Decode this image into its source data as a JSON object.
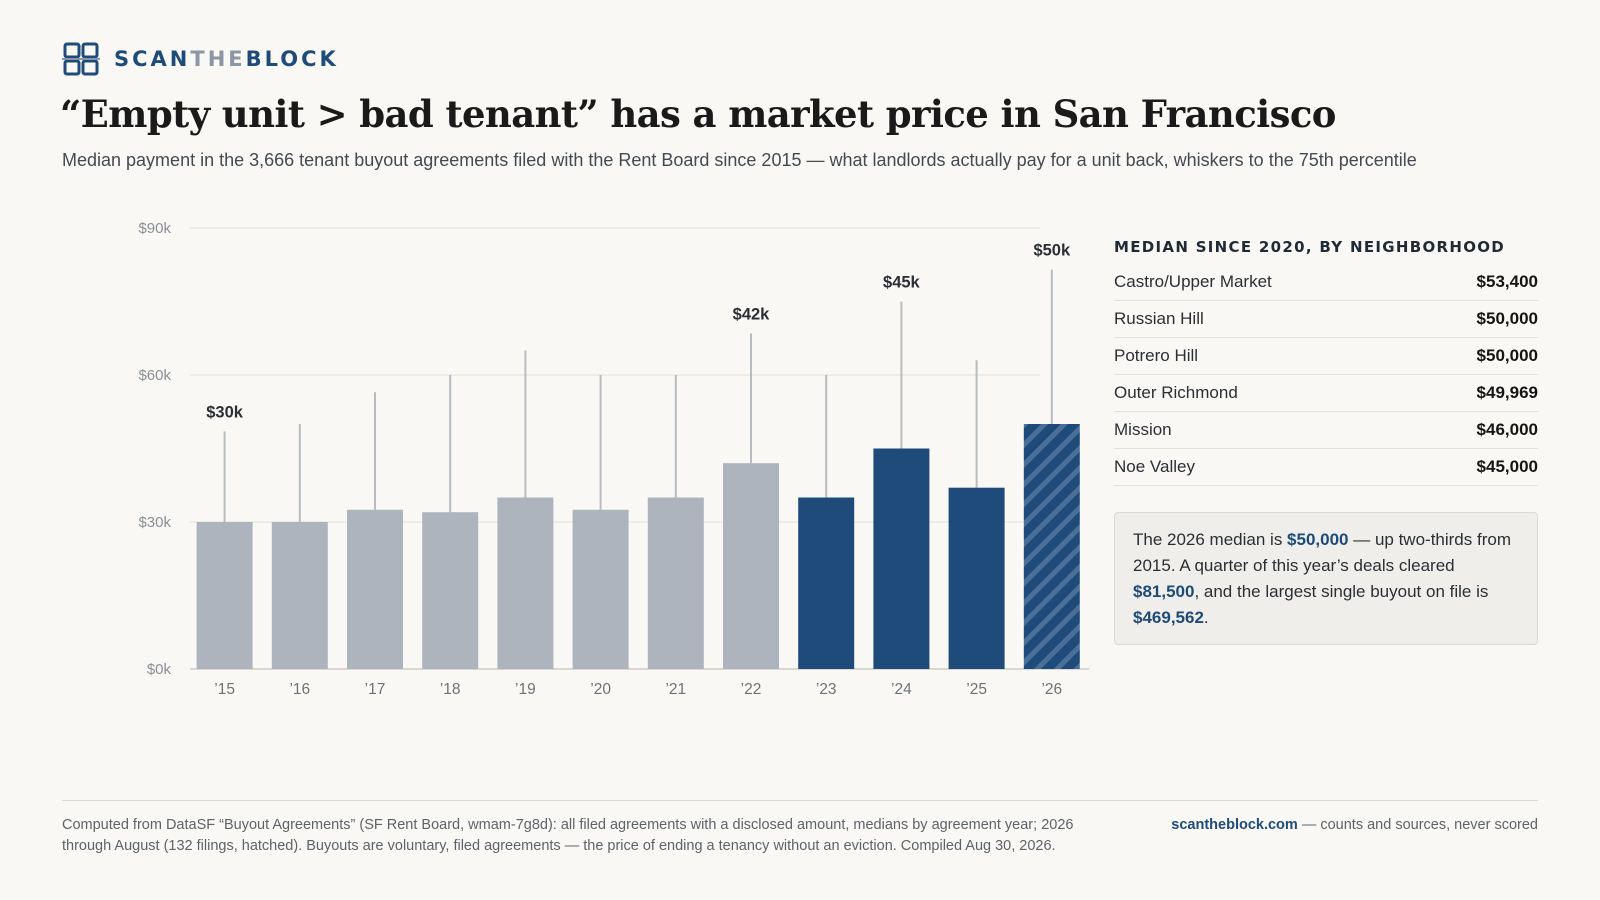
{
  "brand": {
    "part1": "SCAN",
    "part2": "THE",
    "part3": "BLOCK",
    "accent_color": "#1e4b79",
    "muted_color": "#8a96a4",
    "icon": "grid-logo-icon"
  },
  "title": "“Empty unit > bad tenant” has a market price in San Francisco",
  "subtitle": "Median payment in the 3,666 tenant buyout agreements filed with the Rent Board since 2015 — what landlords actually pay for a unit back, whiskers to the 75th percentile",
  "chart_data": {
    "type": "bar",
    "categories": [
      "’15",
      "’16",
      "’17",
      "’18",
      "’19",
      "’20",
      "’21",
      "’22",
      "’23",
      "’24",
      "’25",
      "’26"
    ],
    "series": [
      {
        "values": [
          30000,
          30000,
          32500,
          32000,
          35000,
          32500,
          35000,
          42000,
          35000,
          45000,
          37000,
          50000
        ],
        "p75": [
          48500,
          50000,
          56500,
          60000,
          65000,
          60000,
          60000,
          68500,
          60000,
          75000,
          63000,
          81500
        ]
      }
    ],
    "value_labels": {
      "0": "$30k",
      "7": "$42k",
      "9": "$45k",
      "11": "$50k"
    },
    "y_ticks": [
      0,
      30000,
      60000,
      90000
    ],
    "y_tick_labels": [
      "$0k",
      "$30k",
      "$60k",
      "$90k"
    ],
    "ylim": [
      0,
      90000
    ],
    "grid": true,
    "colors": {
      "before_2023": "#adb4be",
      "from_2023": "#1e4b79",
      "partial_year_hatch": "#4a7099",
      "whisker": "#b8bcc2"
    },
    "partial_year_index": 11
  },
  "sidebar": {
    "heading": "MEDIAN SINCE 2020, BY NEIGHBORHOOD",
    "rows": [
      {
        "name": "Castro/Upper Market",
        "value": "$53,400"
      },
      {
        "name": "Russian Hill",
        "value": "$50,000"
      },
      {
        "name": "Potrero Hill",
        "value": "$50,000"
      },
      {
        "name": "Outer Richmond",
        "value": "$49,969"
      },
      {
        "name": "Mission",
        "value": "$46,000"
      },
      {
        "name": "Noe Valley",
        "value": "$45,000"
      }
    ]
  },
  "callout": {
    "t1": "The 2026 median is ",
    "v1": "$50,000",
    "t2": " — up two-thirds from 2015. A quarter of this year’s deals cleared ",
    "v2": "$81,500",
    "t3": ", and the largest single buyout on file is ",
    "v3": "$469,562",
    "t4": "."
  },
  "footer": {
    "note": "Computed from DataSF “Buyout Agreements” (SF Rent Board, wmam-7g8d): all filed agreements with a disclosed amount, medians by agreement year; 2026 through August (132 filings, hatched). Buyouts are voluntary, filed agreements — the price of ending a tenancy without an eviction. Compiled Aug 30, 2026.",
    "site": "scantheblock.com",
    "tagline": " — counts and sources, never scored"
  }
}
